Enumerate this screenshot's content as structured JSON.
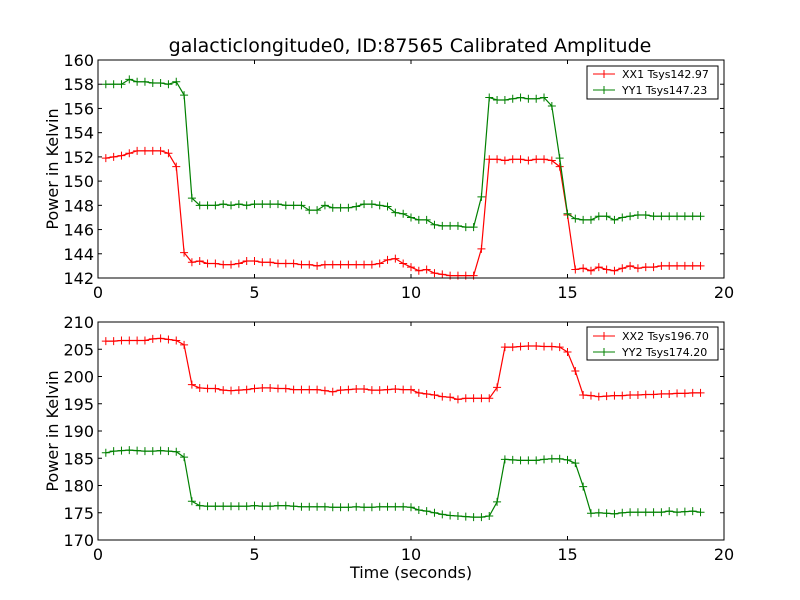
{
  "chart_data": [
    {
      "type": "line",
      "title": "galacticlongitude0, ID:87565 Calibrated Amplitude",
      "xlabel": "",
      "ylabel": "Power in Kelvin",
      "xlim": [
        0,
        20
      ],
      "ylim": [
        142,
        160
      ],
      "xticks": [
        0,
        5,
        10,
        15,
        20
      ],
      "yticks": [
        142,
        144,
        146,
        148,
        150,
        152,
        154,
        156,
        158,
        160
      ],
      "grid": false,
      "legend_position": "top-right",
      "x": [
        0.25,
        0.5,
        0.75,
        1.0,
        1.25,
        1.5,
        1.75,
        2.0,
        2.25,
        2.5,
        2.75,
        3.0,
        3.25,
        3.5,
        3.75,
        4.0,
        4.25,
        4.5,
        4.75,
        5.0,
        5.25,
        5.5,
        5.75,
        6.0,
        6.25,
        6.5,
        6.75,
        7.0,
        7.25,
        7.5,
        7.75,
        8.0,
        8.25,
        8.5,
        8.75,
        9.0,
        9.25,
        9.5,
        9.75,
        10.0,
        10.25,
        10.5,
        10.75,
        11.0,
        11.25,
        11.5,
        11.75,
        12.0,
        12.25,
        12.5,
        12.75,
        13.0,
        13.25,
        13.5,
        13.75,
        14.0,
        14.25,
        14.5,
        14.75,
        15.0,
        15.25,
        15.5,
        15.75,
        16.0,
        16.25,
        16.5,
        16.75,
        17.0,
        17.25,
        17.5,
        17.75,
        18.0,
        18.25,
        18.5,
        18.75,
        19.0,
        19.25
      ],
      "series": [
        {
          "name": "XX1 Tsys142.97",
          "color": "#ff0000",
          "values": [
            151.9,
            152.0,
            152.1,
            152.3,
            152.5,
            152.5,
            152.5,
            152.5,
            152.3,
            151.2,
            144.1,
            143.3,
            143.4,
            143.2,
            143.2,
            143.1,
            143.1,
            143.2,
            143.4,
            143.4,
            143.3,
            143.3,
            143.2,
            143.2,
            143.2,
            143.1,
            143.1,
            143.0,
            143.1,
            143.1,
            143.1,
            143.1,
            143.1,
            143.1,
            143.1,
            143.2,
            143.5,
            143.6,
            143.2,
            142.9,
            142.6,
            142.7,
            142.4,
            142.3,
            142.2,
            142.2,
            142.2,
            142.2,
            144.4,
            151.8,
            151.8,
            151.7,
            151.8,
            151.8,
            151.7,
            151.8,
            151.8,
            151.7,
            151.2,
            147.2,
            142.7,
            142.8,
            142.6,
            142.9,
            142.7,
            142.6,
            142.8,
            143.0,
            142.8,
            142.9,
            142.9,
            143.0,
            143.0,
            143.0,
            143.0,
            143.0,
            143.0
          ]
        },
        {
          "name": "YY1 Tsys147.23",
          "color": "#008000",
          "values": [
            158.0,
            158.0,
            158.0,
            158.4,
            158.2,
            158.2,
            158.1,
            158.1,
            158.0,
            158.2,
            157.1,
            148.6,
            148.0,
            148.0,
            148.0,
            148.1,
            148.0,
            148.1,
            148.0,
            148.1,
            148.1,
            148.1,
            148.1,
            148.0,
            148.0,
            148.0,
            147.6,
            147.6,
            148.0,
            147.8,
            147.8,
            147.8,
            147.9,
            148.1,
            148.1,
            148.0,
            147.9,
            147.4,
            147.3,
            147.0,
            146.8,
            146.8,
            146.4,
            146.3,
            146.3,
            146.3,
            146.2,
            146.2,
            148.7,
            156.9,
            156.7,
            156.7,
            156.8,
            156.9,
            156.8,
            156.8,
            156.9,
            156.2,
            151.9,
            147.3,
            146.9,
            146.8,
            146.8,
            147.1,
            147.1,
            146.8,
            147.0,
            147.1,
            147.2,
            147.2,
            147.1,
            147.1,
            147.1,
            147.1,
            147.1,
            147.1,
            147.1
          ]
        }
      ]
    },
    {
      "type": "line",
      "title": "",
      "xlabel": "Time (seconds)",
      "ylabel": "Power in Kelvin",
      "xlim": [
        0,
        20
      ],
      "ylim": [
        170,
        210
      ],
      "xticks": [
        0,
        5,
        10,
        15,
        20
      ],
      "yticks": [
        170,
        175,
        180,
        185,
        190,
        195,
        200,
        205,
        210
      ],
      "grid": false,
      "legend_position": "top-right",
      "x": [
        0.25,
        0.5,
        0.75,
        1.0,
        1.25,
        1.5,
        1.75,
        2.0,
        2.25,
        2.5,
        2.75,
        3.0,
        3.25,
        3.5,
        3.75,
        4.0,
        4.25,
        4.5,
        4.75,
        5.0,
        5.25,
        5.5,
        5.75,
        6.0,
        6.25,
        6.5,
        6.75,
        7.0,
        7.25,
        7.5,
        7.75,
        8.0,
        8.25,
        8.5,
        8.75,
        9.0,
        9.25,
        9.5,
        9.75,
        10.0,
        10.25,
        10.5,
        10.75,
        11.0,
        11.25,
        11.5,
        11.75,
        12.0,
        12.25,
        12.5,
        12.75,
        13.0,
        13.25,
        13.5,
        13.75,
        14.0,
        14.25,
        14.5,
        14.75,
        15.0,
        15.25,
        15.5,
        15.75,
        16.0,
        16.25,
        16.5,
        16.75,
        17.0,
        17.25,
        17.5,
        17.75,
        18.0,
        18.25,
        18.5,
        18.75,
        19.0,
        19.25
      ],
      "series": [
        {
          "name": "XX2 Tsys196.70",
          "color": "#ff0000",
          "values": [
            206.5,
            206.5,
            206.6,
            206.6,
            206.6,
            206.6,
            206.9,
            207.0,
            206.8,
            206.6,
            205.8,
            198.5,
            197.9,
            197.8,
            197.8,
            197.5,
            197.4,
            197.5,
            197.6,
            197.8,
            197.9,
            197.9,
            197.8,
            197.8,
            197.6,
            197.6,
            197.6,
            197.6,
            197.4,
            197.2,
            197.5,
            197.6,
            197.7,
            197.7,
            197.5,
            197.5,
            197.6,
            197.7,
            197.6,
            197.6,
            197.0,
            196.8,
            196.6,
            196.3,
            196.2,
            195.8,
            196.0,
            196.0,
            196.0,
            196.0,
            198.0,
            205.4,
            205.4,
            205.5,
            205.6,
            205.6,
            205.5,
            205.5,
            205.4,
            204.5,
            201.0,
            196.6,
            196.5,
            196.3,
            196.4,
            196.5,
            196.5,
            196.6,
            196.6,
            196.7,
            196.7,
            196.8,
            196.8,
            196.9,
            196.9,
            197.0,
            197.0
          ]
        },
        {
          "name": "YY2 Tsys174.20",
          "color": "#008000",
          "values": [
            186.0,
            186.3,
            186.4,
            186.5,
            186.4,
            186.3,
            186.3,
            186.4,
            186.3,
            186.2,
            185.2,
            177.1,
            176.3,
            176.2,
            176.2,
            176.2,
            176.2,
            176.2,
            176.2,
            176.3,
            176.2,
            176.2,
            176.3,
            176.3,
            176.2,
            176.1,
            176.1,
            176.1,
            176.1,
            176.0,
            176.0,
            176.0,
            176.1,
            176.0,
            176.0,
            176.1,
            176.1,
            176.1,
            176.1,
            176.0,
            175.5,
            175.3,
            175.0,
            174.7,
            174.5,
            174.4,
            174.3,
            174.2,
            174.2,
            174.4,
            177.0,
            184.8,
            184.7,
            184.6,
            184.6,
            184.6,
            184.8,
            184.9,
            184.9,
            184.7,
            184.1,
            179.8,
            174.9,
            175.0,
            174.9,
            174.8,
            175.0,
            175.1,
            175.1,
            175.1,
            175.1,
            175.1,
            175.3,
            175.1,
            175.2,
            175.3,
            175.1
          ]
        }
      ]
    }
  ]
}
